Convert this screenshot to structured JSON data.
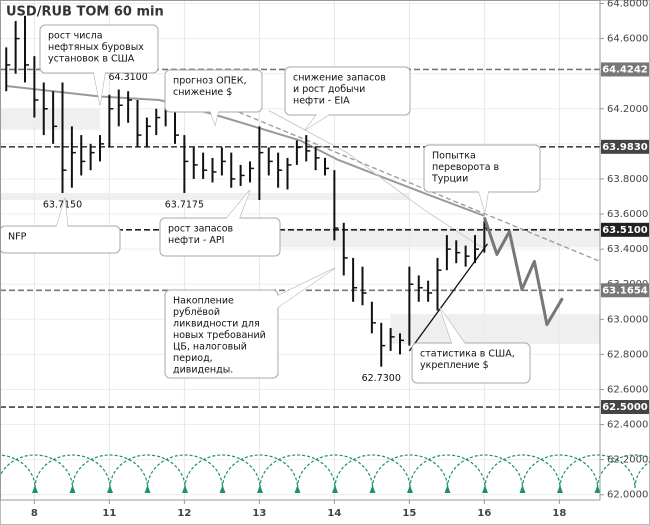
{
  "chart_data": {
    "type": "ohlc",
    "title": "USD/RUB TOM 60 min",
    "xlim": [
      -11,
      181
    ],
    "ylim": [
      61.97,
      64.82
    ],
    "grid": true,
    "xticks": [
      {
        "value": 0,
        "label": "8"
      },
      {
        "value": 24,
        "label": "11"
      },
      {
        "value": 48,
        "label": "12"
      },
      {
        "value": 72,
        "label": "13"
      },
      {
        "value": 96,
        "label": "14"
      },
      {
        "value": 120,
        "label": "15"
      },
      {
        "value": 144,
        "label": "16"
      },
      {
        "value": 168,
        "label": "18"
      }
    ],
    "yticks": [
      {
        "value": 62.0,
        "label": "62.0000"
      },
      {
        "value": 62.2,
        "label": "62.2000"
      },
      {
        "value": 62.4,
        "label": "62.4000"
      },
      {
        "value": 62.6,
        "label": "62.6000"
      },
      {
        "value": 62.8,
        "label": "62.8000"
      },
      {
        "value": 63.0,
        "label": "63.0000"
      },
      {
        "value": 63.2,
        "label": "63.2000"
      },
      {
        "value": 63.4,
        "label": "63.4000"
      },
      {
        "value": 63.6,
        "label": "63.6000"
      },
      {
        "value": 63.8,
        "label": "63.8000"
      },
      {
        "value": 64.0,
        "label": "64.0000"
      },
      {
        "value": 64.2,
        "label": "64.2000"
      },
      {
        "value": 64.4,
        "label": "64.4000"
      },
      {
        "value": 64.6,
        "label": "64.6000"
      },
      {
        "value": 64.8,
        "label": "64.8000"
      }
    ],
    "color": "#111111",
    "x": [
      -9,
      -6,
      -3,
      0,
      3,
      6,
      9,
      12,
      15,
      18,
      21,
      24,
      27,
      30,
      33,
      36,
      39,
      42,
      45,
      48,
      51,
      54,
      57,
      60,
      63,
      66,
      69,
      72,
      75,
      78,
      81,
      84,
      87,
      90,
      93,
      96,
      99,
      102,
      105,
      108,
      111,
      114,
      117,
      120,
      123,
      126,
      129,
      132,
      135,
      138,
      141,
      144
    ],
    "high": [
      64.55,
      64.7,
      64.73,
      64.5,
      64.35,
      64.3,
      64.35,
      64.1,
      64.05,
      64.0,
      64.05,
      64.28,
      64.31,
      64.3,
      64.25,
      64.15,
      64.2,
      64.25,
      64.22,
      64.05,
      63.98,
      63.95,
      63.92,
      63.98,
      63.95,
      63.88,
      63.9,
      64.1,
      63.98,
      63.95,
      63.92,
      64.02,
      64.05,
      63.98,
      63.92,
      63.85,
      63.55,
      63.35,
      63.3,
      63.1,
      62.98,
      62.95,
      62.92,
      63.3,
      63.25,
      63.22,
      63.35,
      63.48,
      63.45,
      63.42,
      63.48,
      63.56
    ],
    "low": [
      64.3,
      64.4,
      64.35,
      64.15,
      64.05,
      64.0,
      63.72,
      63.75,
      63.82,
      63.85,
      63.9,
      63.98,
      64.1,
      64.12,
      63.98,
      63.98,
      64.05,
      64.1,
      64.0,
      63.72,
      63.8,
      63.8,
      63.78,
      63.82,
      63.75,
      63.76,
      63.78,
      63.68,
      63.82,
      63.75,
      63.74,
      63.88,
      63.9,
      63.85,
      63.82,
      63.45,
      63.25,
      63.1,
      63.08,
      62.92,
      62.73,
      62.82,
      62.8,
      62.85,
      63.1,
      63.1,
      63.05,
      63.28,
      63.32,
      63.3,
      63.32,
      63.38
    ],
    "close": [
      64.45,
      64.6,
      64.45,
      64.25,
      64.2,
      64.1,
      63.85,
      63.95,
      63.9,
      63.95,
      64.0,
      64.2,
      64.22,
      64.25,
      64.05,
      64.1,
      64.15,
      64.2,
      64.05,
      63.9,
      63.88,
      63.85,
      63.84,
      63.9,
      63.8,
      63.82,
      63.86,
      63.95,
      63.9,
      63.85,
      63.88,
      63.98,
      63.96,
      63.92,
      63.86,
      63.52,
      63.35,
      63.18,
      63.15,
      62.98,
      62.85,
      62.9,
      62.88,
      63.2,
      63.18,
      63.15,
      63.28,
      63.4,
      63.38,
      63.36,
      63.4,
      63.52
    ],
    "moving_averages": [
      {
        "color": "#9a9a9a",
        "x": [
          -9,
          21,
          40,
          57,
          85,
          97,
          110,
          126,
          144
        ],
        "values": [
          64.33,
          64.27,
          64.25,
          64.17,
          64.02,
          63.91,
          63.82,
          63.71,
          63.59
        ]
      },
      {
        "color": "#cccccc",
        "x": [
          75,
          100,
          125,
          144
        ],
        "values": [
          64.19,
          63.95,
          63.62,
          63.4
        ]
      }
    ],
    "zones": [
      {
        "x": [
          -11,
          21
        ],
        "values": [
          64.08,
          64.2
        ]
      },
      {
        "x": [
          -11,
          120
        ],
        "values": [
          63.68,
          63.72
        ]
      },
      {
        "x": [
          40,
          181
        ],
        "values": [
          63.41,
          63.52
        ]
      },
      {
        "x": [
          114,
          181
        ],
        "values": [
          62.86,
          63.03
        ]
      }
    ],
    "levels": [
      {
        "value": 64.4242,
        "label": "64.4242",
        "color": "#777777"
      },
      {
        "value": 63.983,
        "label": "63.9830",
        "color": "#444444"
      },
      {
        "value": 63.51,
        "label": "63.5100",
        "color": "#222222"
      },
      {
        "value": 63.1654,
        "label": "63.1654",
        "color": "#777777"
      },
      {
        "value": 62.5,
        "label": "62.5000",
        "color": "#444444"
      }
    ],
    "trendlines": [
      {
        "x": [
          56,
          181
        ],
        "values": [
          64.25,
          63.33
        ],
        "color": "#999999",
        "dashed": true
      },
      {
        "x": [
          120,
          145
        ],
        "values": [
          62.82,
          63.43
        ],
        "color": "#111111",
        "dashed": false
      }
    ],
    "forecast": {
      "color": "#777777",
      "x": [
        144,
        148,
        152,
        156,
        160,
        164,
        169
      ],
      "values": [
        63.58,
        63.37,
        63.5,
        63.17,
        63.33,
        62.97,
        63.12
      ]
    },
    "price_labels": [
      {
        "x": 30,
        "value": 64.31,
        "label": "64.3100",
        "side": "above"
      },
      {
        "x": 9,
        "value": 63.72,
        "label": "63.7150",
        "side": "below"
      },
      {
        "x": 48,
        "value": 63.72,
        "label": "63.7175",
        "side": "below"
      },
      {
        "x": 111,
        "value": 62.73,
        "label": "62.7300",
        "side": "below"
      }
    ],
    "callouts": [
      {
        "lines": [
          "рост числа",
          "нефтяных буровых",
          "установок в США"
        ]
      },
      {
        "lines": [
          "прогноз ОПЕК,",
          "снижение $"
        ]
      },
      {
        "lines": [
          "снижение запасов",
          "и рост добычи",
          "нефти - EIA"
        ]
      },
      {
        "lines": [
          "Попытка",
          "переворота в",
          "Турции"
        ]
      },
      {
        "lines": [
          "NFP"
        ]
      },
      {
        "lines": [
          "рост запасов",
          "нефти - API"
        ]
      },
      {
        "lines": [
          "Накопление",
          "рублёвой",
          "ликвидности для",
          "новых требований",
          "ЦБ, налоговый",
          "период,",
          "дивиденды."
        ]
      },
      {
        "lines": [
          "статистика в США,",
          "укрепление $"
        ]
      }
    ]
  }
}
